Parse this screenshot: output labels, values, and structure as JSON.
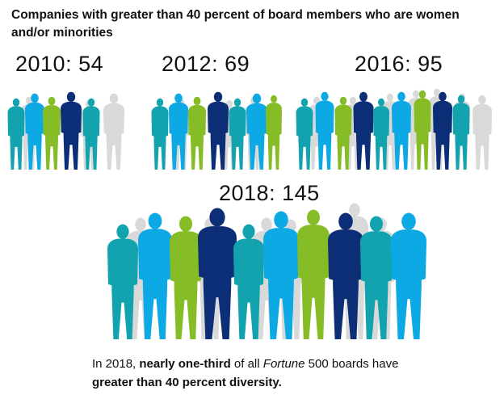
{
  "title": "Companies with greater than 40 percent of board members who are women and/or minorities",
  "chart_data": {
    "type": "pictograph",
    "title": "Companies with greater than 40 percent of board members who are women and/or minorities",
    "categories": [
      "2010",
      "2012",
      "2016",
      "2018"
    ],
    "values": [
      54,
      69,
      95,
      145
    ],
    "labels": [
      "2010: 54",
      "2012: 69",
      "2016: 95",
      "2018: 145"
    ]
  },
  "footer": {
    "pre": "In 2018, ",
    "bold1": "nearly one-third",
    "mid1": " of all ",
    "italic": "Fortune",
    "mid2": " 500 boards have ",
    "bold2": "greater than 40 percent diversity."
  },
  "colors": {
    "teal": "#13A3AE",
    "lightblue": "#0DA9E4",
    "green": "#86BC25",
    "navy": "#0B2E76",
    "gray": "#D9D9D9"
  }
}
